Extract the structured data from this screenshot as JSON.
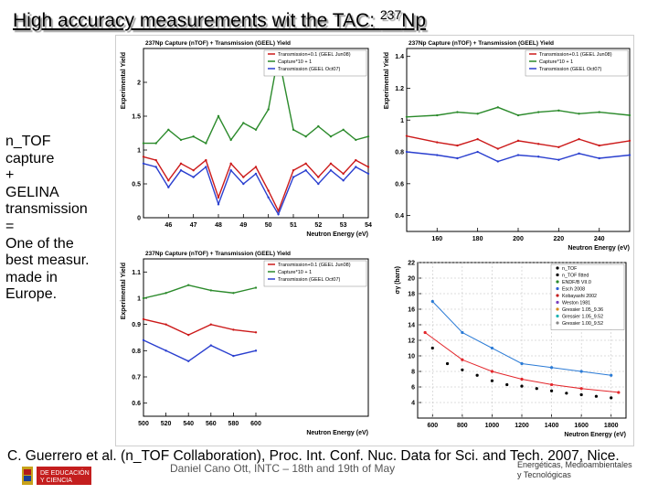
{
  "slide": {
    "title_main": "High accuracy measurements wit the TAC: ",
    "title_sup": "237",
    "title_end": "Np",
    "sidebar": [
      "n_TOF",
      "capture",
      "+",
      "GELINA",
      "transmission",
      "=",
      "One of the",
      "best measur.",
      "made in",
      "Europe."
    ],
    "citation": "C. Guerrero et al. (n_TOF Collaboration), Proc. Int. Conf. Nuc. Data for Sci. and Tech. 2007, Nice.",
    "footer_speaker": "Daniel Cano Ott, INTC – 18th and 19th of May",
    "footer_org_line1": "Energéticas, Medioambientales",
    "footer_org_line2": "y Tecnológicas",
    "ministry_text_1": "DE EDUCACIÓN",
    "ministry_text_2": "Y CIENCIA",
    "colors": {
      "capture": "#2b8a2b",
      "trans1": "#cc1a1a",
      "trans2": "#1a1a1a",
      "trans3": "#2a3fcf"
    }
  },
  "chart_data": [
    {
      "type": "line",
      "title": "237Np Capture (nTOF) + Transmission (GEEL) Yield",
      "xlabel": "Neutron Energy (eV)",
      "ylabel": "Experimental Yield",
      "xlim": [
        45,
        54
      ],
      "ylim": [
        0,
        2.5
      ],
      "xticks": [
        "46",
        "47",
        "48",
        "49",
        "50",
        "51",
        "52",
        "53",
        "54"
      ],
      "yticks": [
        "0",
        "0.5",
        "1",
        "1.5",
        "2"
      ],
      "legend": [
        "Transmission+0.1 (GEEL Jun08)",
        "Capture*10 + 1",
        "Transmission (GEEL Oct07)"
      ],
      "series": [
        {
          "name": "Capture*10 + 1",
          "x": [
            45,
            45.5,
            46,
            46.5,
            47,
            47.5,
            48,
            48.5,
            49,
            49.5,
            50,
            50.4,
            51,
            51.5,
            52,
            52.5,
            53,
            53.5,
            54
          ],
          "values": [
            1.1,
            1.1,
            1.3,
            1.15,
            1.2,
            1.1,
            1.5,
            1.15,
            1.4,
            1.3,
            1.6,
            2.4,
            1.3,
            1.2,
            1.35,
            1.2,
            1.3,
            1.15,
            1.2
          ]
        },
        {
          "name": "Transmission+0.1 (GEEL Jun08)",
          "x": [
            45,
            45.5,
            46,
            46.5,
            47,
            47.5,
            48,
            48.5,
            49,
            49.5,
            50,
            50.4,
            51,
            51.5,
            52,
            52.5,
            53,
            53.5,
            54
          ],
          "values": [
            0.9,
            0.85,
            0.55,
            0.8,
            0.7,
            0.85,
            0.3,
            0.8,
            0.6,
            0.75,
            0.4,
            0.1,
            0.7,
            0.8,
            0.6,
            0.8,
            0.65,
            0.85,
            0.75
          ]
        },
        {
          "name": "Transmission (GEEL Oct07)",
          "x": [
            45,
            45.5,
            46,
            46.5,
            47,
            47.5,
            48,
            48.5,
            49,
            49.5,
            50,
            50.4,
            51,
            51.5,
            52,
            52.5,
            53,
            53.5,
            54
          ],
          "values": [
            0.8,
            0.75,
            0.45,
            0.7,
            0.6,
            0.75,
            0.2,
            0.7,
            0.5,
            0.65,
            0.3,
            0.05,
            0.6,
            0.7,
            0.5,
            0.7,
            0.55,
            0.75,
            0.65
          ]
        }
      ]
    },
    {
      "type": "line",
      "title": "237Np Capture (nTOF) + Transmission (GEEL) Yield",
      "xlabel": "Neutron Energy (eV)",
      "ylabel": "Experimental Yield",
      "xlim": [
        145,
        255
      ],
      "ylim": [
        0.3,
        1.45
      ],
      "xticks": [
        "160",
        "180",
        "200",
        "220",
        "240"
      ],
      "yticks": [
        "0.4",
        "0.6",
        "0.8",
        "1",
        "1.2",
        "1.4"
      ],
      "legend": [
        "Transmission+0.1 (GEEL Jun08)",
        "Capture*10 + 1",
        "Transmission (GEEL Oct07)"
      ],
      "series": [
        {
          "name": "Capture*10 + 1",
          "x": [
            145,
            160,
            170,
            180,
            190,
            200,
            210,
            220,
            230,
            240,
            255
          ],
          "values": [
            1.02,
            1.03,
            1.05,
            1.04,
            1.08,
            1.03,
            1.05,
            1.06,
            1.04,
            1.05,
            1.03
          ]
        },
        {
          "name": "Transmission+0.1 (GEEL Jun08)",
          "x": [
            145,
            160,
            170,
            180,
            190,
            200,
            210,
            220,
            230,
            240,
            255
          ],
          "values": [
            0.9,
            0.86,
            0.84,
            0.88,
            0.82,
            0.87,
            0.85,
            0.83,
            0.88,
            0.84,
            0.87
          ]
        },
        {
          "name": "Transmission (GEEL Oct07)",
          "x": [
            145,
            160,
            170,
            180,
            190,
            200,
            210,
            220,
            230,
            240,
            255
          ],
          "values": [
            0.8,
            0.78,
            0.76,
            0.8,
            0.74,
            0.78,
            0.77,
            0.75,
            0.79,
            0.76,
            0.78
          ]
        }
      ]
    },
    {
      "type": "line",
      "title": "237Np Capture (nTOF) + Transmission (GEEL) Yield",
      "xlabel": "Neutron Energy (eV)",
      "ylabel": "Experimental Yield",
      "xlim": [
        500,
        700
      ],
      "ylim": [
        0.55,
        1.15
      ],
      "xticks": [
        "500",
        "520",
        "540",
        "560",
        "580",
        "600"
      ],
      "yticks": [
        "0.6",
        "0.7",
        "0.8",
        "0.9",
        "1",
        "1.1"
      ],
      "legend": [
        "Transmission+0.1 (GEEL Jun08)",
        "Capture*10 + 1",
        "Transmission (GEEL Oct07)"
      ],
      "series": [
        {
          "name": "Capture*10 + 1",
          "x": [
            500,
            520,
            540,
            560,
            580,
            600
          ],
          "values": [
            1.0,
            1.02,
            1.05,
            1.03,
            1.02,
            1.04
          ]
        },
        {
          "name": "Transmission+0.1 (GEEL Jun08)",
          "x": [
            500,
            520,
            540,
            560,
            580,
            600
          ],
          "values": [
            0.92,
            0.9,
            0.86,
            0.9,
            0.88,
            0.87
          ]
        },
        {
          "name": "Transmission (GEEL Oct07)",
          "x": [
            500,
            520,
            540,
            560,
            580,
            600
          ],
          "values": [
            0.84,
            0.8,
            0.76,
            0.82,
            0.78,
            0.8
          ]
        }
      ]
    },
    {
      "type": "scatter",
      "title": "",
      "xlabel": "Neutron Energy (eV)",
      "ylabel": "σγ (barn)",
      "xlim": [
        500,
        1900
      ],
      "ylim": [
        2,
        22
      ],
      "xticks": [
        "600",
        "800",
        "1000",
        "1200",
        "1400",
        "1600",
        "1800"
      ],
      "yticks": [
        "4",
        "6",
        "8",
        "10",
        "12",
        "14",
        "16",
        "18",
        "20",
        "22"
      ],
      "legend": [
        "n_TOF",
        "n_TOF fitted",
        "ENDF/B VII.0",
        "Esch 2008",
        "Kobayashi 2002",
        "Weston 1981",
        "Gressier 1.05_9.36",
        "Gressier 1.05_9.52",
        "Gressier 1.00_9.52"
      ],
      "series": [
        {
          "name": "n_TOF",
          "x": [
            600,
            700,
            800,
            900,
            1000,
            1100,
            1200,
            1300,
            1400,
            1500,
            1600,
            1700,
            1800
          ],
          "values": [
            11,
            9,
            8.2,
            7.5,
            6.8,
            6.3,
            6.1,
            5.8,
            5.5,
            5.2,
            5.0,
            4.8,
            4.6
          ]
        },
        {
          "name": "ENDF/B VII.0",
          "x": [
            550,
            800,
            1000,
            1200,
            1400,
            1600,
            1850
          ],
          "values": [
            13,
            9.5,
            8,
            7,
            6.3,
            5.8,
            5.3
          ]
        },
        {
          "name": "Esch 2008",
          "x": [
            600,
            800,
            1000,
            1200,
            1400,
            1600,
            1800
          ],
          "values": [
            17,
            13,
            11,
            9,
            8.5,
            8,
            7.5
          ]
        }
      ]
    }
  ]
}
